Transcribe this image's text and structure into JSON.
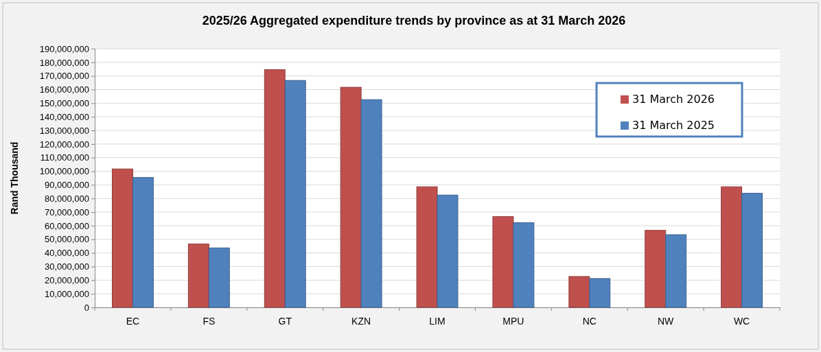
{
  "chart_data": {
    "type": "bar",
    "title": "2025/26 Aggregated expenditure trends by province as at 31 March 2026",
    "ylabel": "Rand Thousand",
    "categories": [
      "EC",
      "FS",
      "GT",
      "KZN",
      "LIM",
      "MPU",
      "NC",
      "NW",
      "WC"
    ],
    "series": [
      {
        "name": "31 March 2026",
        "color": "#c0504d",
        "values": [
          101700000,
          46600000,
          174600000,
          161700000,
          88600000,
          66700000,
          22700000,
          56600000,
          88600000
        ]
      },
      {
        "name": "31 March 2025",
        "color": "#4f81bd",
        "values": [
          95400000,
          43700000,
          166700000,
          152600000,
          82500000,
          62200000,
          21200000,
          53400000,
          83800000
        ]
      }
    ],
    "ylim": [
      0,
      190000000
    ],
    "yticks": [
      {
        "value": 0,
        "label": "0"
      },
      {
        "value": 10000000,
        "label": "10,000,000"
      },
      {
        "value": 20000000,
        "label": "20,000,000"
      },
      {
        "value": 30000000,
        "label": "30,000,000"
      },
      {
        "value": 40000000,
        "label": "40,000,000"
      },
      {
        "value": 50000000,
        "label": "50,000,000"
      },
      {
        "value": 60000000,
        "label": "60,000,000"
      },
      {
        "value": 70000000,
        "label": "70,000,000"
      },
      {
        "value": 80000000,
        "label": "80,000,000"
      },
      {
        "value": 90000000,
        "label": "90,000,000"
      },
      {
        "value": 100000000,
        "label": "100,000,000"
      },
      {
        "value": 110000000,
        "label": "110,000,000"
      },
      {
        "value": 120000000,
        "label": "120,000,000"
      },
      {
        "value": 130000000,
        "label": "130,000,000"
      },
      {
        "value": 140000000,
        "label": "140,000,000"
      },
      {
        "value": 150000000,
        "label": "150,000,000"
      },
      {
        "value": 160000000,
        "label": "160,000,000"
      },
      {
        "value": 170000000,
        "label": "170,000,000"
      },
      {
        "value": 180000000,
        "label": "180,000,000"
      },
      {
        "value": 190000000,
        "label": "190,000,000"
      }
    ],
    "grid": "y",
    "legend": "top right"
  }
}
